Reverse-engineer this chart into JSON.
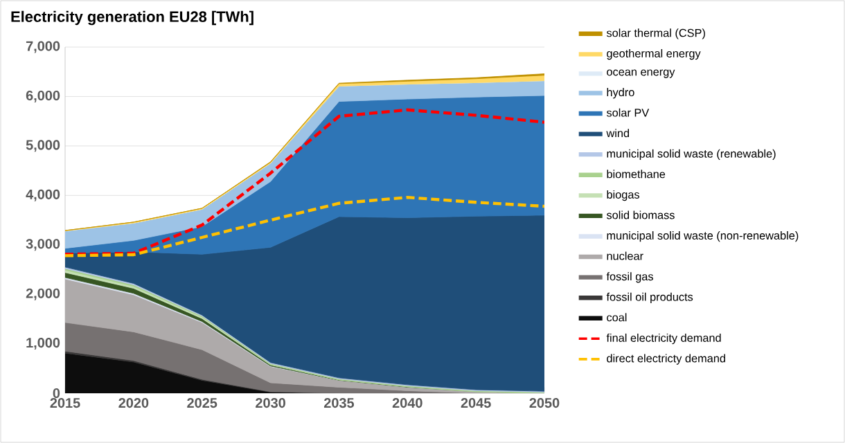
{
  "chart_data": {
    "type": "area",
    "title": "Electricity generation EU28 [TWh]",
    "stacked": true,
    "x": [
      2015,
      2020,
      2025,
      2030,
      2035,
      2040,
      2045,
      2050
    ],
    "xlim": [
      2015,
      2050
    ],
    "xticks": [
      2015,
      2020,
      2025,
      2030,
      2035,
      2040,
      2045,
      2050
    ],
    "ylim": [
      0,
      7000
    ],
    "yticks": [
      0,
      {
        "value": 1000,
        "label": "1,000"
      },
      {
        "value": 2000,
        "label": "2,000"
      },
      {
        "value": 3000,
        "label": "3,000"
      },
      {
        "value": 4000,
        "label": "4,000"
      },
      {
        "value": 5000,
        "label": "5,000"
      },
      {
        "value": 6000,
        "label": "6,000"
      },
      {
        "value": 7000,
        "label": "7,000"
      }
    ],
    "grid": "y",
    "legend": "right",
    "series": [
      {
        "name": "coal",
        "color": "#0d0d0d",
        "values": [
          810,
          630,
          260,
          20,
          0,
          0,
          0,
          0
        ]
      },
      {
        "name": "fossil oil products",
        "color": "#3a3838",
        "values": [
          40,
          30,
          20,
          10,
          0,
          0,
          0,
          0
        ]
      },
      {
        "name": "fossil gas",
        "color": "#767171",
        "values": [
          580,
          580,
          600,
          180,
          120,
          50,
          0,
          0
        ]
      },
      {
        "name": "nuclear",
        "color": "#aeaaaa",
        "values": [
          880,
          750,
          550,
          330,
          140,
          70,
          30,
          0
        ]
      },
      {
        "name": "municipal solid waste (non-renewable)",
        "color": "#dae3f3",
        "values": [
          30,
          30,
          20,
          10,
          0,
          0,
          0,
          0
        ]
      },
      {
        "name": "solid biomass",
        "color": "#375623",
        "values": [
          100,
          100,
          60,
          20,
          10,
          10,
          0,
          0
        ]
      },
      {
        "name": "biogas",
        "color": "#c5e0b4",
        "values": [
          50,
          40,
          30,
          10,
          0,
          0,
          0,
          0
        ]
      },
      {
        "name": "biomethane",
        "color": "#a9d18e",
        "values": [
          30,
          30,
          20,
          20,
          20,
          20,
          20,
          20
        ]
      },
      {
        "name": "municipal solid waste (renewable)",
        "color": "#b4c7e7",
        "values": [
          30,
          30,
          20,
          20,
          20,
          20,
          20,
          20
        ]
      },
      {
        "name": "wind",
        "color": "#1f4e79",
        "values": [
          280,
          640,
          1230,
          2330,
          3260,
          3380,
          3510,
          3560
        ]
      },
      {
        "name": "solar PV",
        "color": "#2e75b6",
        "values": [
          100,
          230,
          560,
          1330,
          2330,
          2400,
          2410,
          2420
        ]
      },
      {
        "name": "hydro",
        "color": "#9dc3e6",
        "values": [
          350,
          350,
          350,
          370,
          310,
          300,
          290,
          300
        ]
      },
      {
        "name": "ocean energy",
        "color": "#deebf7",
        "values": [
          null,
          null,
          null,
          null,
          null,
          null,
          null,
          null
        ]
      },
      {
        "name": "geothermal energy",
        "color": "#ffd966",
        "values": [
          10,
          20,
          20,
          20,
          50,
          60,
          80,
          110
        ]
      },
      {
        "name": "solar thermal (CSP)",
        "color": "#bf9000",
        "values": [
          0,
          0,
          0,
          10,
          10,
          20,
          20,
          30
        ]
      },
      {
        "name": "final electricity demand",
        "type": "line",
        "line_style": "dashed",
        "color": "#ff0000",
        "values": [
          2810,
          2830,
          3400,
          4450,
          5600,
          5730,
          5620,
          5480
        ]
      },
      {
        "name": "direct electricty demand",
        "type": "line",
        "line_style": "dashed",
        "color": "#ffc000",
        "values": [
          2780,
          2800,
          3150,
          3500,
          3840,
          3960,
          3860,
          3780
        ]
      }
    ]
  }
}
